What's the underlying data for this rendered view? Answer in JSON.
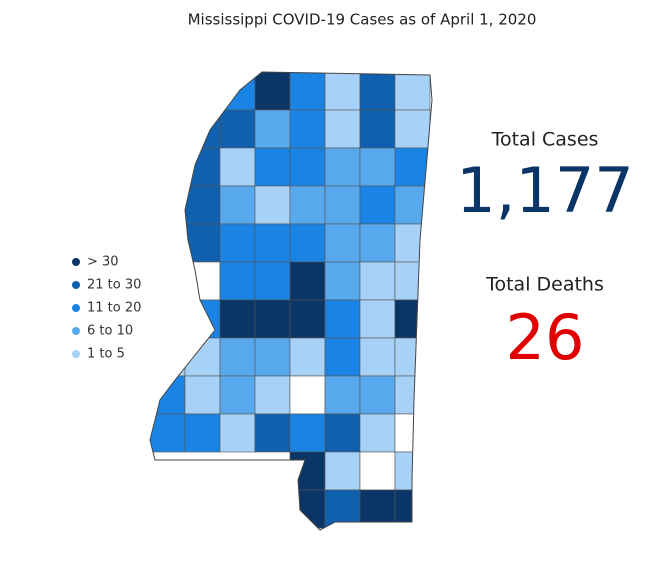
{
  "title": "Mississippi COVID-19 Cases as of April 1, 2020",
  "legend": [
    {
      "label": "> 30",
      "color": "#0a3566"
    },
    {
      "label": "21 to 30",
      "color": "#1060b0"
    },
    {
      "label": "11 to 20",
      "color": "#1a84e4"
    },
    {
      "label": "6 to 10",
      "color": "#58a8ee"
    },
    {
      "label": "1 to 5",
      "color": "#a7d1f6"
    }
  ],
  "stats": {
    "cases_label": "Total Cases",
    "cases": "1,177",
    "deaths_label": "Total Deaths",
    "deaths": "26"
  }
}
